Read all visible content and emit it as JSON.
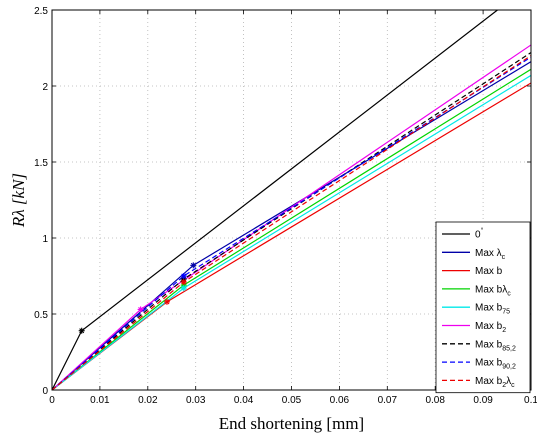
{
  "chart_data": {
    "type": "line",
    "title": "",
    "xlabel": "End shortening [mm]",
    "ylabel": "Rλ [kN]",
    "xlim": [
      0,
      0.1
    ],
    "ylim": [
      0,
      2.5
    ],
    "xticks": [
      0,
      0.01,
      0.02,
      0.03,
      0.04,
      0.05,
      0.06,
      0.07,
      0.08,
      0.09,
      0.1
    ],
    "xtick_labels": [
      "0",
      "0.01",
      "0.02",
      "0.03",
      "0.04",
      "0.05",
      "0.06",
      "0.07",
      "0.08",
      "0.09",
      "0.1"
    ],
    "yticks": [
      0,
      0.5,
      1,
      1.5,
      2,
      2.5
    ],
    "ytick_labels": [
      "0",
      "0.5",
      "1",
      "1.5",
      "2",
      "2.5"
    ],
    "grid": true,
    "legend_position": "bottom-right",
    "series": [
      {
        "name": "0°",
        "color": "#000000",
        "dash": "solid",
        "points": [
          [
            0,
            0
          ],
          [
            0.0062,
            0.39
          ],
          [
            0.093,
            2.5
          ]
        ],
        "marker": [
          0.0062,
          0.39
        ]
      },
      {
        "name": "Max λc",
        "color": "#0000a8",
        "dash": "solid",
        "points": [
          [
            0,
            0
          ],
          [
            0.0295,
            0.82
          ],
          [
            0.1,
            2.16
          ]
        ],
        "marker": [
          0.0295,
          0.82
        ]
      },
      {
        "name": "Max b",
        "color": "#ee0000",
        "dash": "solid",
        "points": [
          [
            0,
            0
          ],
          [
            0.024,
            0.58
          ],
          [
            0.1,
            2.02
          ]
        ],
        "marker": [
          0.024,
          0.58
        ]
      },
      {
        "name": "Max bλc",
        "color": "#00d400",
        "dash": "solid",
        "points": [
          [
            0,
            0
          ],
          [
            0.0275,
            0.69
          ],
          [
            0.1,
            2.11
          ]
        ],
        "marker": [
          0.0275,
          0.69
        ]
      },
      {
        "name": "Max b75",
        "color": "#00e8e8",
        "dash": "solid",
        "points": [
          [
            0,
            0
          ],
          [
            0.0275,
            0.67
          ],
          [
            0.1,
            2.07
          ]
        ],
        "marker": [
          0.0275,
          0.67
        ]
      },
      {
        "name": "Max b2",
        "color": "#ee00ee",
        "dash": "solid",
        "points": [
          [
            0,
            0
          ],
          [
            0.0185,
            0.53
          ],
          [
            0.1,
            2.27
          ]
        ],
        "marker": [
          0.0185,
          0.53
        ]
      },
      {
        "name": "Max b85,2",
        "color": "#000000",
        "dash": "dashed",
        "points": [
          [
            0,
            0
          ],
          [
            0.0275,
            0.73
          ],
          [
            0.1,
            2.22
          ]
        ],
        "marker": [
          0.0275,
          0.73
        ]
      },
      {
        "name": "Max b90,2",
        "color": "#0000ff",
        "dash": "dashed",
        "points": [
          [
            0,
            0
          ],
          [
            0.0275,
            0.75
          ],
          [
            0.1,
            2.19
          ]
        ],
        "marker": [
          0.0275,
          0.75
        ]
      },
      {
        "name": "Max b2λc",
        "color": "#ee0000",
        "dash": "dashed",
        "points": [
          [
            0,
            0
          ],
          [
            0.0275,
            0.71
          ],
          [
            0.1,
            2.2
          ]
        ],
        "marker": [
          0.0275,
          0.71
        ]
      }
    ]
  },
  "legend": {
    "entries": [
      {
        "base": "0",
        "sub": "",
        "sup": "°",
        "tail": "",
        "tail_sub": ""
      },
      {
        "base": "Max λ",
        "sub": "c",
        "sup": "",
        "tail": "",
        "tail_sub": ""
      },
      {
        "base": "Max b",
        "sub": "",
        "sup": "",
        "tail": "",
        "tail_sub": ""
      },
      {
        "base": "Max bλ",
        "sub": "c",
        "sup": "",
        "tail": "",
        "tail_sub": ""
      },
      {
        "base": "Max b",
        "sub": "75",
        "sup": "",
        "tail": "",
        "tail_sub": ""
      },
      {
        "base": "Max b",
        "sub": "2",
        "sup": "",
        "tail": "",
        "tail_sub": ""
      },
      {
        "base": "Max b",
        "sub": "85,2",
        "sup": "",
        "tail": "",
        "tail_sub": ""
      },
      {
        "base": "Max b",
        "sub": "90,2",
        "sup": "",
        "tail": "",
        "tail_sub": ""
      },
      {
        "base": "Max b",
        "sub": "2",
        "sup": "",
        "tail": "λ",
        "tail_sub": "c"
      }
    ]
  }
}
